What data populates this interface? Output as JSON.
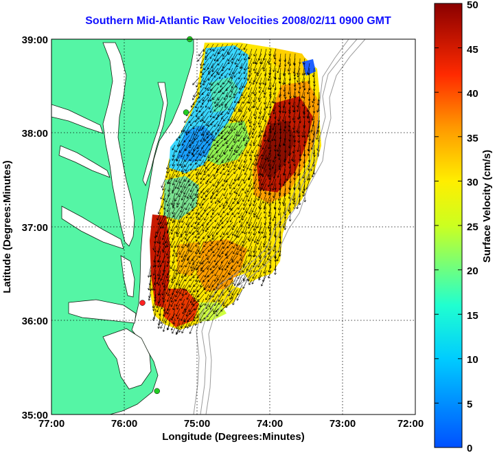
{
  "title": "Southern Mid-Atlantic Raw Velocities 2008/02/11 0900 GMT",
  "axes": {
    "x_label": "Longitude (Degrees:Minutes)",
    "y_label": "Latitude (Degrees:Minutes)",
    "x_ticks": [
      "77:00",
      "76:00",
      "75:00",
      "74:00",
      "73:00",
      "72:00"
    ],
    "y_ticks": [
      "39:00",
      "38:00",
      "37:00",
      "36:00",
      "35:00"
    ]
  },
  "colorbar": {
    "label": "Surface Velocity (cm/s)",
    "min": 0,
    "max": 50,
    "ticks": [
      "0",
      "5",
      "10",
      "15",
      "20",
      "25",
      "30",
      "35",
      "40",
      "45",
      "50"
    ]
  },
  "colors": {
    "land": "#55f5a5",
    "water": "#ffffff",
    "title": "#1010ff",
    "bathymetry": "#999999",
    "station": "#22cc22",
    "station_highlight": "#ff2222"
  },
  "map_data": {
    "lon_range": [
      -77,
      -72
    ],
    "lat_range": [
      35,
      39
    ],
    "stations": [
      {
        "lon": -75.1,
        "lat": 39.0
      },
      {
        "lon": -75.15,
        "lat": 38.22
      },
      {
        "lon": -75.75,
        "lat": 36.19
      },
      {
        "lon": -75.55,
        "lat": 35.25
      }
    ]
  }
}
